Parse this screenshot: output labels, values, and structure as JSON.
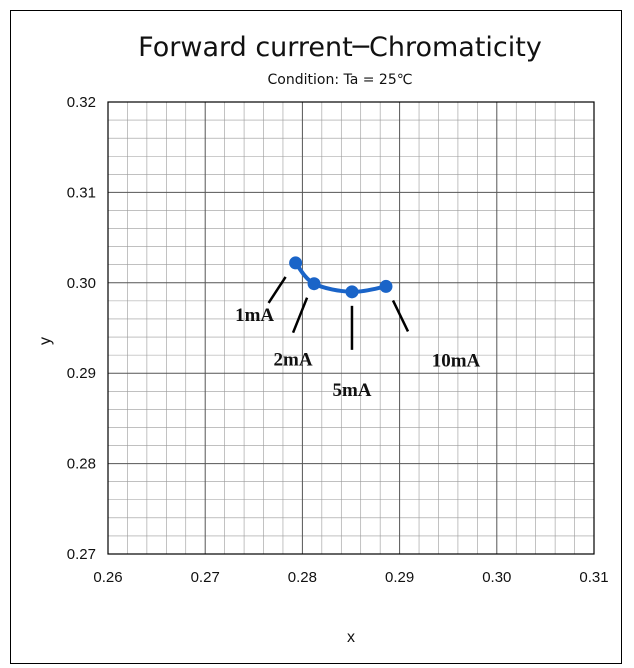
{
  "chart_data": {
    "type": "line",
    "title": "Forward current─Chromaticity",
    "subtitle": "Condition: Ta = 25℃",
    "xlabel": "x",
    "ylabel": "y",
    "xlim": [
      0.26,
      0.31
    ],
    "ylim": [
      0.27,
      0.32
    ],
    "x_ticks": [
      "0.26",
      "0.27",
      "0.28",
      "0.29",
      "0.30",
      "0.31"
    ],
    "y_ticks": [
      "0.27",
      "0.28",
      "0.29",
      "0.30",
      "0.31",
      "0.32"
    ],
    "grid": true,
    "series": [
      {
        "color": "#1a64c8",
        "x": [
          0.2793,
          0.2812,
          0.2851,
          0.2886
        ],
        "y": [
          0.3022,
          0.2999,
          0.299,
          0.2996
        ]
      }
    ],
    "annotations": [
      {
        "text": "1mA",
        "point": 0
      },
      {
        "text": "2mA",
        "point": 1
      },
      {
        "text": "5mA",
        "point": 2
      },
      {
        "text": "10mA",
        "point": 3
      }
    ]
  }
}
